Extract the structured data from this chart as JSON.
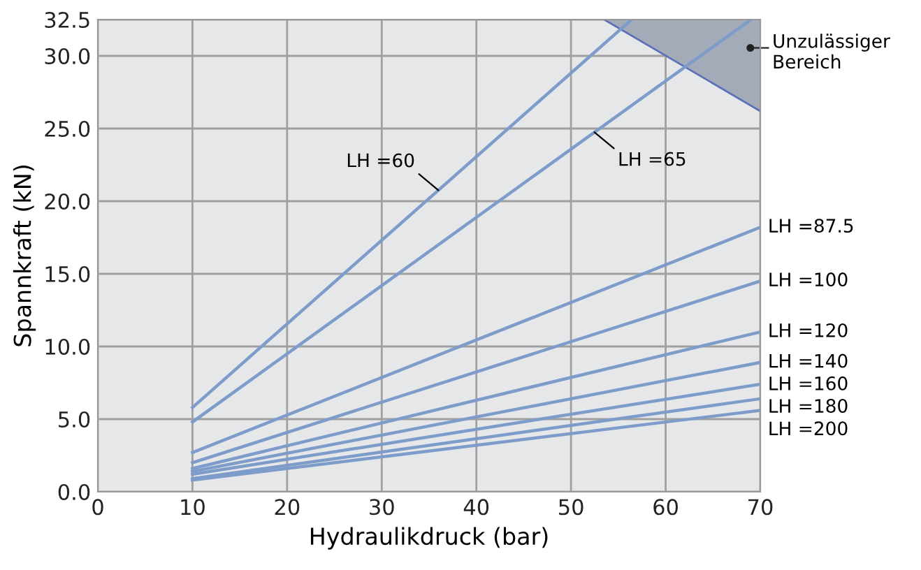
{
  "chart_data": {
    "type": "line",
    "xlabel": "Hydraulikdruck (bar)",
    "ylabel": "Spannkraft (kN)",
    "xlim": [
      0,
      70
    ],
    "ylim": [
      0,
      32.5
    ],
    "xticks": [
      0,
      10,
      20,
      30,
      40,
      50,
      60,
      70
    ],
    "yticks": [
      {
        "value": 0,
        "label": "0.0"
      },
      {
        "value": 5,
        "label": "5.0"
      },
      {
        "value": 10,
        "label": "10.0"
      },
      {
        "value": 15,
        "label": "15.0"
      },
      {
        "value": 20,
        "label": "20.0"
      },
      {
        "value": 25,
        "label": "25.0"
      },
      {
        "value": 30,
        "label": "30.0"
      },
      {
        "value": 32.5,
        "label": "32.5"
      }
    ],
    "grid": true,
    "series": [
      {
        "name": "Unzulässiger Bereich",
        "type": "area",
        "color": "#a3aab8",
        "x": [
          53.5,
          70
        ],
        "values": [
          32.5,
          26.2
        ]
      },
      {
        "name": "LH =60",
        "color": "#7e9cca",
        "x": [
          10,
          56.4
        ],
        "values": [
          5.8,
          32.5
        ]
      },
      {
        "name": "LH =65",
        "color": "#7e9cca",
        "x": [
          10,
          69
        ],
        "values": [
          4.8,
          32.5
        ]
      },
      {
        "name": "LH =87.5",
        "color": "#7e9cca",
        "x": [
          10,
          70
        ],
        "values": [
          2.7,
          18.2
        ]
      },
      {
        "name": "LH =100",
        "color": "#7e9cca",
        "x": [
          10,
          70
        ],
        "values": [
          2.0,
          14.5
        ]
      },
      {
        "name": "LH =120",
        "color": "#7e9cca",
        "x": [
          10,
          70
        ],
        "values": [
          1.6,
          11.0
        ]
      },
      {
        "name": "LH =140",
        "color": "#7e9cca",
        "x": [
          10,
          70
        ],
        "values": [
          1.4,
          8.9
        ]
      },
      {
        "name": "LH =160",
        "color": "#7e9cca",
        "x": [
          10,
          70
        ],
        "values": [
          1.2,
          7.4
        ]
      },
      {
        "name": "LH =180",
        "color": "#7e9cca",
        "x": [
          10,
          70
        ],
        "values": [
          0.9,
          6.4
        ]
      },
      {
        "name": "LH =200",
        "color": "#7e9cca",
        "x": [
          10,
          70
        ],
        "values": [
          0.8,
          5.6
        ]
      }
    ]
  }
}
